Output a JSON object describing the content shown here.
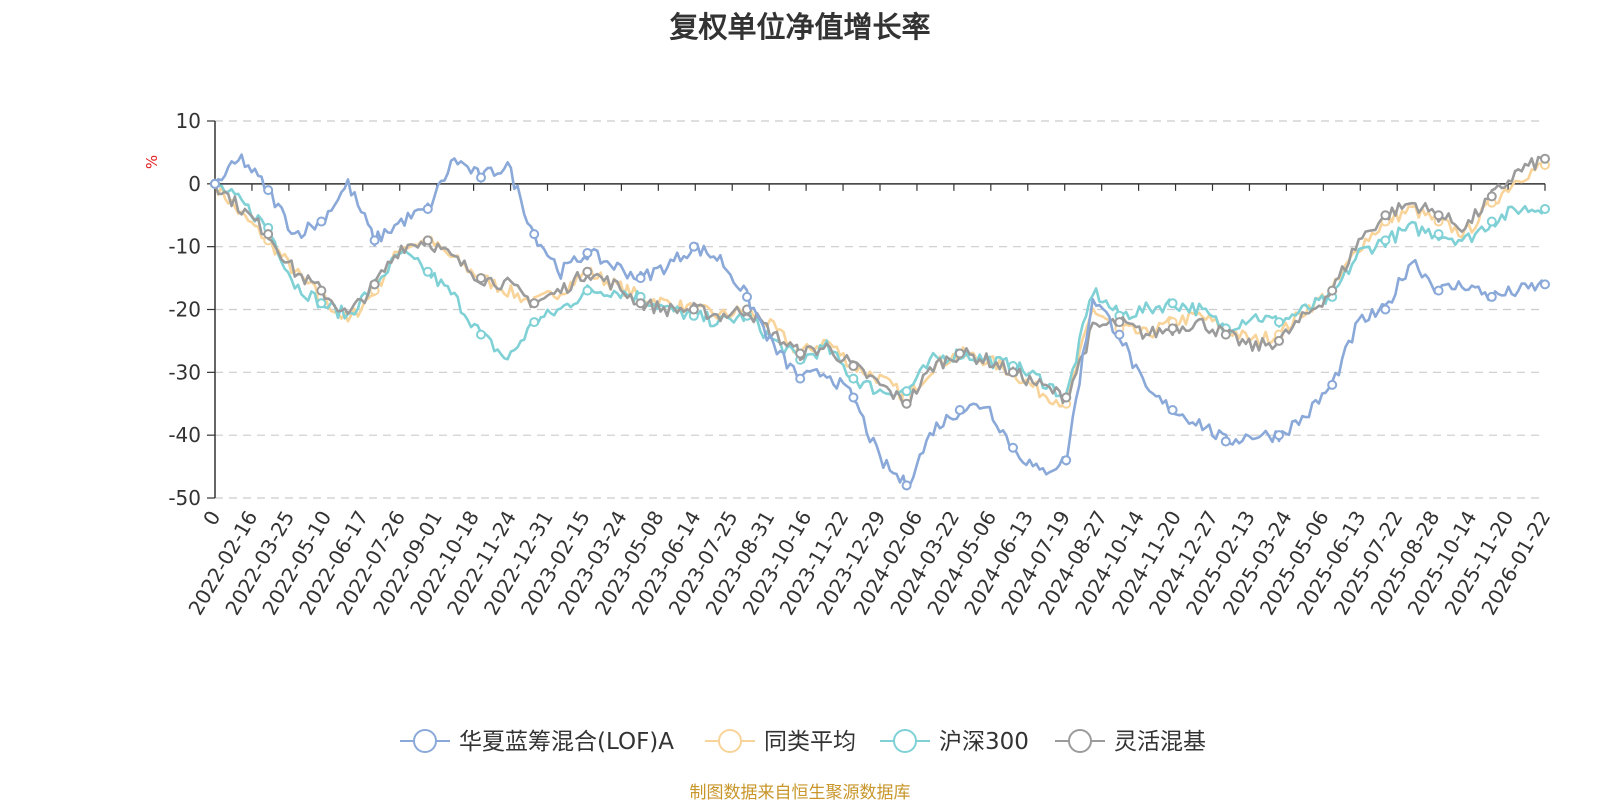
{
  "chart_data": {
    "type": "line",
    "title": "复权单位净值增长率",
    "ylabel": "%",
    "ylim": [
      -50,
      10
    ],
    "yticks": [
      10,
      0,
      -10,
      -20,
      -30,
      -40,
      -50
    ],
    "grid": true,
    "legend_position": "bottom",
    "x_tick_labels": [
      "0",
      "2022-02-16",
      "2022-03-25",
      "2022-05-10",
      "2022-06-17",
      "2022-07-26",
      "2022-09-01",
      "2022-10-18",
      "2022-11-24",
      "2022-12-31",
      "2023-02-15",
      "2023-03-24",
      "2023-05-08",
      "2023-06-14",
      "2023-07-25",
      "2023-08-31",
      "2023-10-16",
      "2023-11-22",
      "2023-12-29",
      "2024-02-06",
      "2024-03-22",
      "2024-05-06",
      "2024-06-13",
      "2024-07-19",
      "2024-08-27",
      "2024-10-14",
      "2024-11-20",
      "2024-12-27",
      "2025-02-13",
      "2025-03-24",
      "2025-05-06",
      "2025-06-13",
      "2025-07-22",
      "2025-08-28",
      "2025-10-14",
      "2025-11-20",
      "2026-01-22"
    ],
    "series": [
      {
        "name": "华夏蓝筹混合(LOF)A",
        "color": "#8aa9d9",
        "values": [
          0,
          4,
          -1,
          -8,
          -6,
          0,
          -9,
          -6,
          -4,
          4,
          1,
          3,
          -8,
          -14,
          -11,
          -13,
          -15,
          -13,
          -10,
          -12,
          -18,
          -26,
          -31,
          -30,
          -34,
          -44,
          -48,
          -39,
          -36,
          -35,
          -42,
          -46,
          -44,
          -18,
          -24,
          -33,
          -36,
          -38,
          -41,
          -40,
          -40,
          -37,
          -32,
          -22,
          -20,
          -12,
          -17,
          -16,
          -18,
          -17,
          -16
        ]
      },
      {
        "name": "同类平均",
        "color": "#f9d49a",
        "values": [
          0,
          -5,
          -9,
          -14,
          -18,
          -22,
          -17,
          -10,
          -9,
          -12,
          -15,
          -17,
          -19,
          -17,
          -14,
          -16,
          -18,
          -19,
          -20,
          -21,
          -20,
          -23,
          -27,
          -25,
          -29,
          -31,
          -34,
          -29,
          -27,
          -28,
          -30,
          -33,
          -35,
          -20,
          -23,
          -24,
          -22,
          -21,
          -23,
          -25,
          -24,
          -20,
          -17,
          -10,
          -6,
          -4,
          -6,
          -8,
          -3,
          1,
          3
        ]
      },
      {
        "name": "沪深300",
        "color": "#7fd1d6",
        "values": [
          0,
          -3,
          -7,
          -16,
          -19,
          -21,
          -16,
          -11,
          -14,
          -18,
          -24,
          -28,
          -22,
          -20,
          -17,
          -17,
          -18,
          -20,
          -21,
          -22,
          -21,
          -25,
          -28,
          -26,
          -31,
          -33,
          -33,
          -28,
          -27,
          -28,
          -29,
          -31,
          -34,
          -17,
          -21,
          -20,
          -19,
          -20,
          -23,
          -21,
          -22,
          -20,
          -18,
          -11,
          -9,
          -7,
          -8,
          -9,
          -6,
          -4,
          -4
        ]
      },
      {
        "name": "灵活混基",
        "color": "#9b9b9b",
        "values": [
          0,
          -4,
          -8,
          -14,
          -17,
          -21,
          -16,
          -10,
          -9,
          -12,
          -15,
          -16,
          -19,
          -17,
          -14,
          -16,
          -19,
          -20,
          -20,
          -21,
          -20,
          -24,
          -27,
          -26,
          -29,
          -32,
          -35,
          -29,
          -27,
          -28,
          -30,
          -32,
          -34,
          -23,
          -22,
          -24,
          -23,
          -22,
          -24,
          -26,
          -25,
          -21,
          -17,
          -9,
          -5,
          -3,
          -5,
          -7,
          -2,
          2,
          4
        ]
      }
    ]
  },
  "source_note": "制图数据来自恒生聚源数据库",
  "source_note_color": "#c8962a"
}
